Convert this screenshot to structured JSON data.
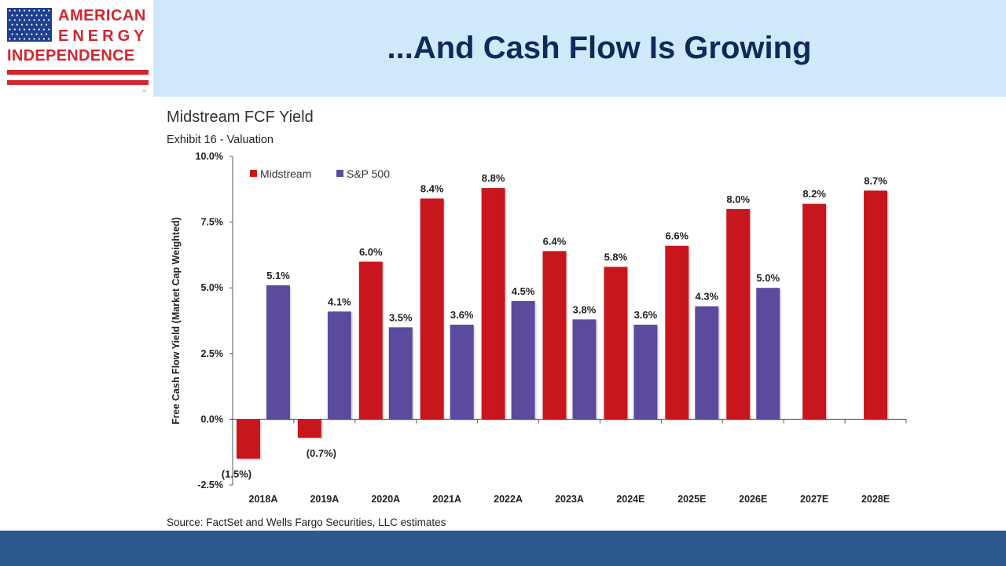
{
  "logo": {
    "line1": "AMERICAN",
    "line2": "ENERGY",
    "line3": "INDEPENDENCE",
    "tm": "™"
  },
  "slide": {
    "title": "...And Cash Flow Is Growing"
  },
  "colors": {
    "header_bg": "#cfe9fb",
    "title": "#0f2a5a",
    "logo_red": "#d3262d",
    "logo_blue": "#1f3f8f",
    "midstream": "#c8161e",
    "sp500": "#5b4a9e",
    "footer": "#2c5a8c"
  },
  "chart_data": {
    "type": "bar",
    "title": "Midstream FCF Yield",
    "subtitle": "Exhibit 16 - Valuation",
    "ylabel": "Free Cash Flow Yield (Market Cap Weighted)",
    "xlabel": "",
    "ylim": [
      -2.5,
      10.0
    ],
    "yticks": [
      -2.5,
      0.0,
      2.5,
      5.0,
      7.5,
      10.0
    ],
    "ytick_labels": [
      "-2.5%",
      "0.0%",
      "2.5%",
      "5.0%",
      "7.5%",
      "10.0%"
    ],
    "categories": [
      "2018A",
      "2019A",
      "2020A",
      "2021A",
      "2022A",
      "2023A",
      "2024E",
      "2025E",
      "2026E",
      "2027E",
      "2028E"
    ],
    "series": [
      {
        "name": "Midstream",
        "color": "#c8161e",
        "values": [
          -1.5,
          -0.7,
          6.0,
          8.4,
          8.8,
          6.4,
          5.8,
          6.6,
          8.0,
          8.2,
          8.7
        ],
        "labels": [
          "(1.5%)",
          "(0.7%)",
          "6.0%",
          "8.4%",
          "8.8%",
          "6.4%",
          "5.8%",
          "6.6%",
          "8.0%",
          "8.2%",
          "8.7%"
        ]
      },
      {
        "name": "S&P 500",
        "color": "#5b4a9e",
        "values": [
          5.1,
          4.1,
          3.5,
          3.6,
          4.5,
          3.8,
          3.6,
          4.3,
          5.0,
          null,
          null
        ],
        "labels": [
          "5.1%",
          "4.1%",
          "3.5%",
          "3.6%",
          "4.5%",
          "3.8%",
          "3.6%",
          "4.3%",
          "5.0%",
          null,
          null
        ]
      }
    ],
    "legend_position": "top-left",
    "grid": false,
    "source": "Source: FactSet and Wells Fargo Securities, LLC estimates"
  }
}
